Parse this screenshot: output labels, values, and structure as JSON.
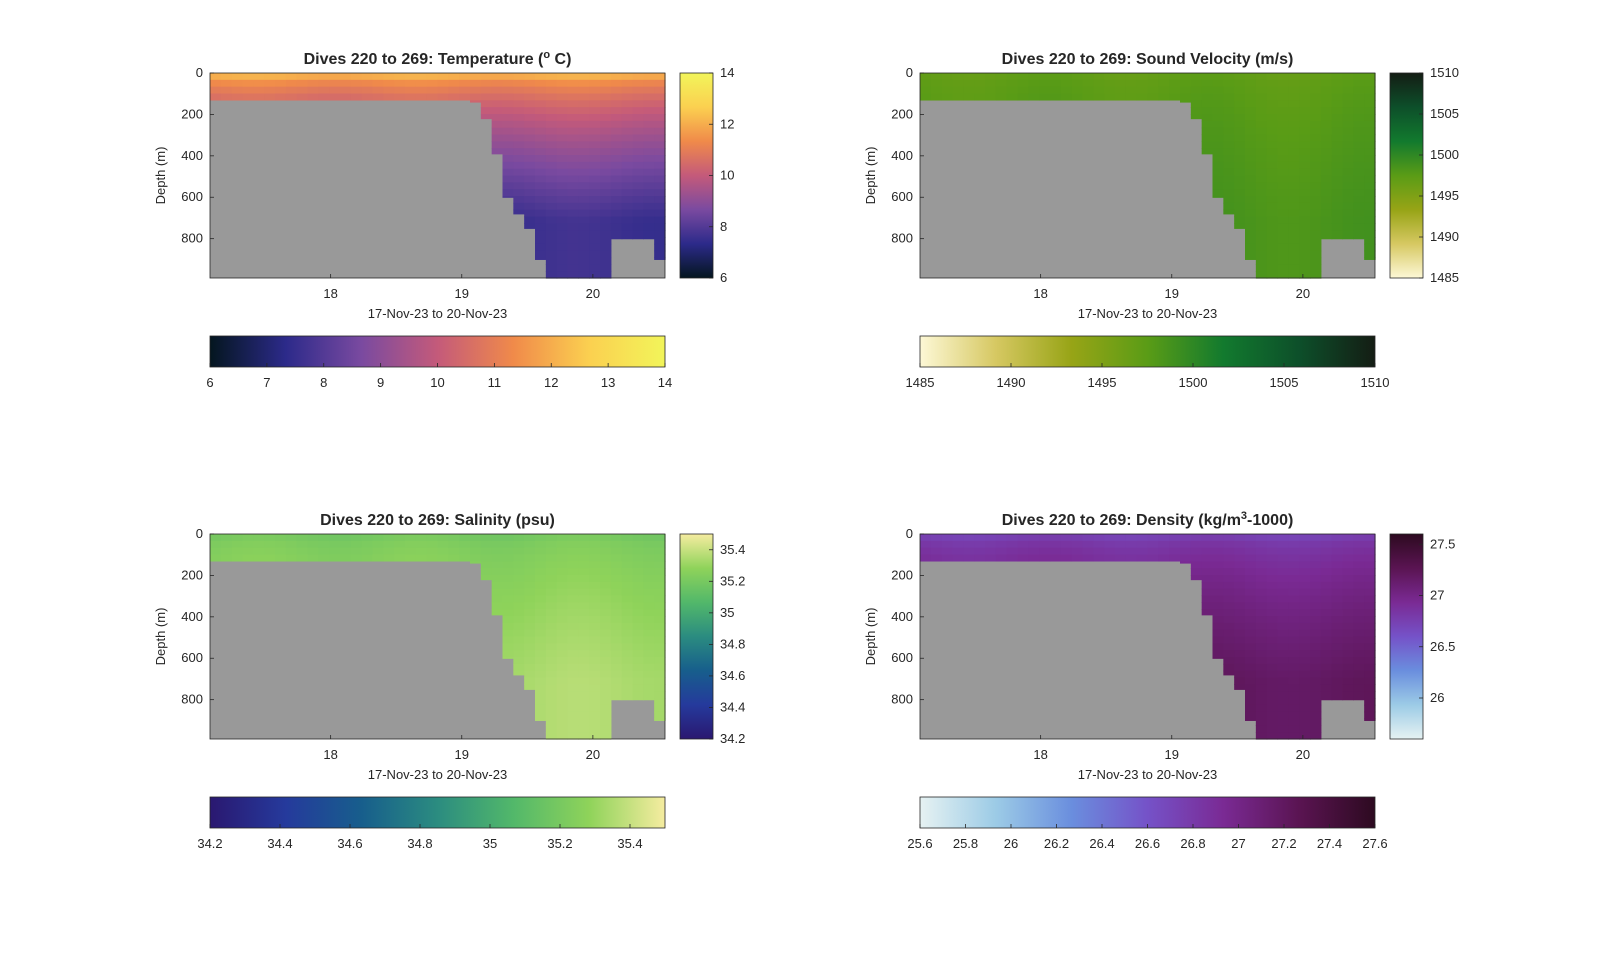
{
  "chart_data": [
    {
      "type": "heatmap",
      "variable": "Temperature",
      "title_prefix": "Dives 220 to 269: Temperature (",
      "title_super": "o",
      "title_suffix": " C)",
      "xlabel": "17-Nov-23 to 20-Nov-23",
      "ylabel": "Depth (m)",
      "xlim": [
        17.08,
        20.55
      ],
      "ylim": [
        990,
        0
      ],
      "xticks": [
        "18",
        "19",
        "20"
      ],
      "yticks": [
        "0",
        "200",
        "400",
        "600",
        "800"
      ],
      "clim": [
        6,
        14
      ],
      "colormap": [
        "#04161f",
        "#2c2a8a",
        "#7a4aa0",
        "#c45a7a",
        "#f08a4a",
        "#fbd050",
        "#f2f55a"
      ],
      "cbar_v_ticks": [
        "6",
        "8",
        "10",
        "12",
        "14"
      ],
      "cbar_h_ticks": [
        "6",
        "7",
        "8",
        "9",
        "10",
        "11",
        "12",
        "13",
        "14"
      ],
      "surface_value": 12.0,
      "deep_value": 7.6,
      "bottom_depth_m": [
        130,
        130,
        130,
        130,
        130,
        130,
        130,
        130,
        130,
        130,
        130,
        130,
        130,
        130,
        130,
        130,
        130,
        130,
        130,
        130,
        130,
        130,
        130,
        130,
        140,
        220,
        390,
        600,
        680,
        750,
        900,
        990,
        990,
        990,
        990,
        990,
        990,
        800,
        800,
        800,
        800,
        900
      ]
    },
    {
      "type": "heatmap",
      "variable": "Sound Velocity",
      "title_prefix": "Dives 220 to 269: Sound Velocity (m/s)",
      "title_super": "",
      "title_suffix": "",
      "xlabel": "17-Nov-23 to 20-Nov-23",
      "ylabel": "Depth (m)",
      "xlim": [
        17.08,
        20.55
      ],
      "ylim": [
        990,
        0
      ],
      "xticks": [
        "18",
        "19",
        "20"
      ],
      "yticks": [
        "0",
        "200",
        "400",
        "600",
        "800"
      ],
      "clim": [
        1485,
        1510
      ],
      "colormap": [
        "#fdf8d6",
        "#d6c862",
        "#97a416",
        "#5a9c16",
        "#127a2e",
        "#0d4f2a",
        "#141d14"
      ],
      "cbar_v_ticks": [
        "1485",
        "1490",
        "1495",
        "1500",
        "1505",
        "1510"
      ],
      "cbar_h_ticks": [
        "1485",
        "1490",
        "1495",
        "1500",
        "1505",
        "1510"
      ],
      "surface_value": 1497.0,
      "deep_value": 1498.5,
      "bottom_depth_m": [
        130,
        130,
        130,
        130,
        130,
        130,
        130,
        130,
        130,
        130,
        130,
        130,
        130,
        130,
        130,
        130,
        130,
        130,
        130,
        130,
        130,
        130,
        130,
        130,
        140,
        220,
        390,
        600,
        680,
        750,
        900,
        990,
        990,
        990,
        990,
        990,
        990,
        800,
        800,
        800,
        800,
        900
      ]
    },
    {
      "type": "heatmap",
      "variable": "Salinity",
      "title_prefix": "Dives 220 to 269: Salinity (psu)",
      "title_super": "",
      "title_suffix": "",
      "xlabel": "17-Nov-23 to 20-Nov-23",
      "ylabel": "Depth (m)",
      "xlim": [
        17.08,
        20.55
      ],
      "ylim": [
        990,
        0
      ],
      "xticks": [
        "18",
        "19",
        "20"
      ],
      "yticks": [
        "0",
        "200",
        "400",
        "600",
        "800"
      ],
      "clim": [
        34.2,
        35.5
      ],
      "colormap": [
        "#2a1870",
        "#253a9c",
        "#175e8c",
        "#2b8c80",
        "#52b86a",
        "#8fd35a",
        "#f5eca0"
      ],
      "cbar_v_ticks": [
        "34.2",
        "34.4",
        "34.6",
        "34.8",
        "35",
        "35.2",
        "35.4"
      ],
      "cbar_h_ticks": [
        "34.2",
        "34.4",
        "34.6",
        "34.8",
        "35",
        "35.2",
        "35.4"
      ],
      "surface_value": 35.2,
      "deep_value": 35.35,
      "bottom_depth_m": [
        130,
        130,
        130,
        130,
        130,
        130,
        130,
        130,
        130,
        130,
        130,
        130,
        130,
        130,
        130,
        130,
        130,
        130,
        130,
        130,
        130,
        130,
        130,
        130,
        140,
        220,
        390,
        600,
        680,
        750,
        900,
        990,
        990,
        990,
        990,
        990,
        990,
        800,
        800,
        800,
        800,
        900
      ]
    },
    {
      "type": "heatmap",
      "variable": "Density",
      "title_prefix": "Dives 220 to 269: Density (kg/m",
      "title_super": "3",
      "title_suffix": "-1000)",
      "xlabel": "17-Nov-23 to 20-Nov-23",
      "ylabel": "Depth (m)",
      "xlim": [
        17.08,
        20.55
      ],
      "ylim": [
        990,
        0
      ],
      "xticks": [
        "18",
        "19",
        "20"
      ],
      "yticks": [
        "0",
        "200",
        "400",
        "600",
        "800"
      ],
      "clim": [
        25.6,
        27.6
      ],
      "colormap": [
        "#e6f2f2",
        "#9ccbe6",
        "#6a8ede",
        "#7552c8",
        "#7a2a94",
        "#5a1452",
        "#2d0a20"
      ],
      "cbar_v_ticks": [
        "26",
        "26.5",
        "27",
        "27.5"
      ],
      "cbar_h_ticks": [
        "25.6",
        "25.8",
        "26",
        "26.2",
        "26.4",
        "26.6",
        "26.8",
        "27",
        "27.2",
        "27.4",
        "27.6"
      ],
      "surface_value": 26.75,
      "deep_value": 27.2,
      "bottom_depth_m": [
        130,
        130,
        130,
        130,
        130,
        130,
        130,
        130,
        130,
        130,
        130,
        130,
        130,
        130,
        130,
        130,
        130,
        130,
        130,
        130,
        130,
        130,
        130,
        130,
        140,
        220,
        390,
        600,
        680,
        750,
        900,
        990,
        990,
        990,
        990,
        990,
        990,
        800,
        800,
        800,
        800,
        900
      ]
    }
  ]
}
